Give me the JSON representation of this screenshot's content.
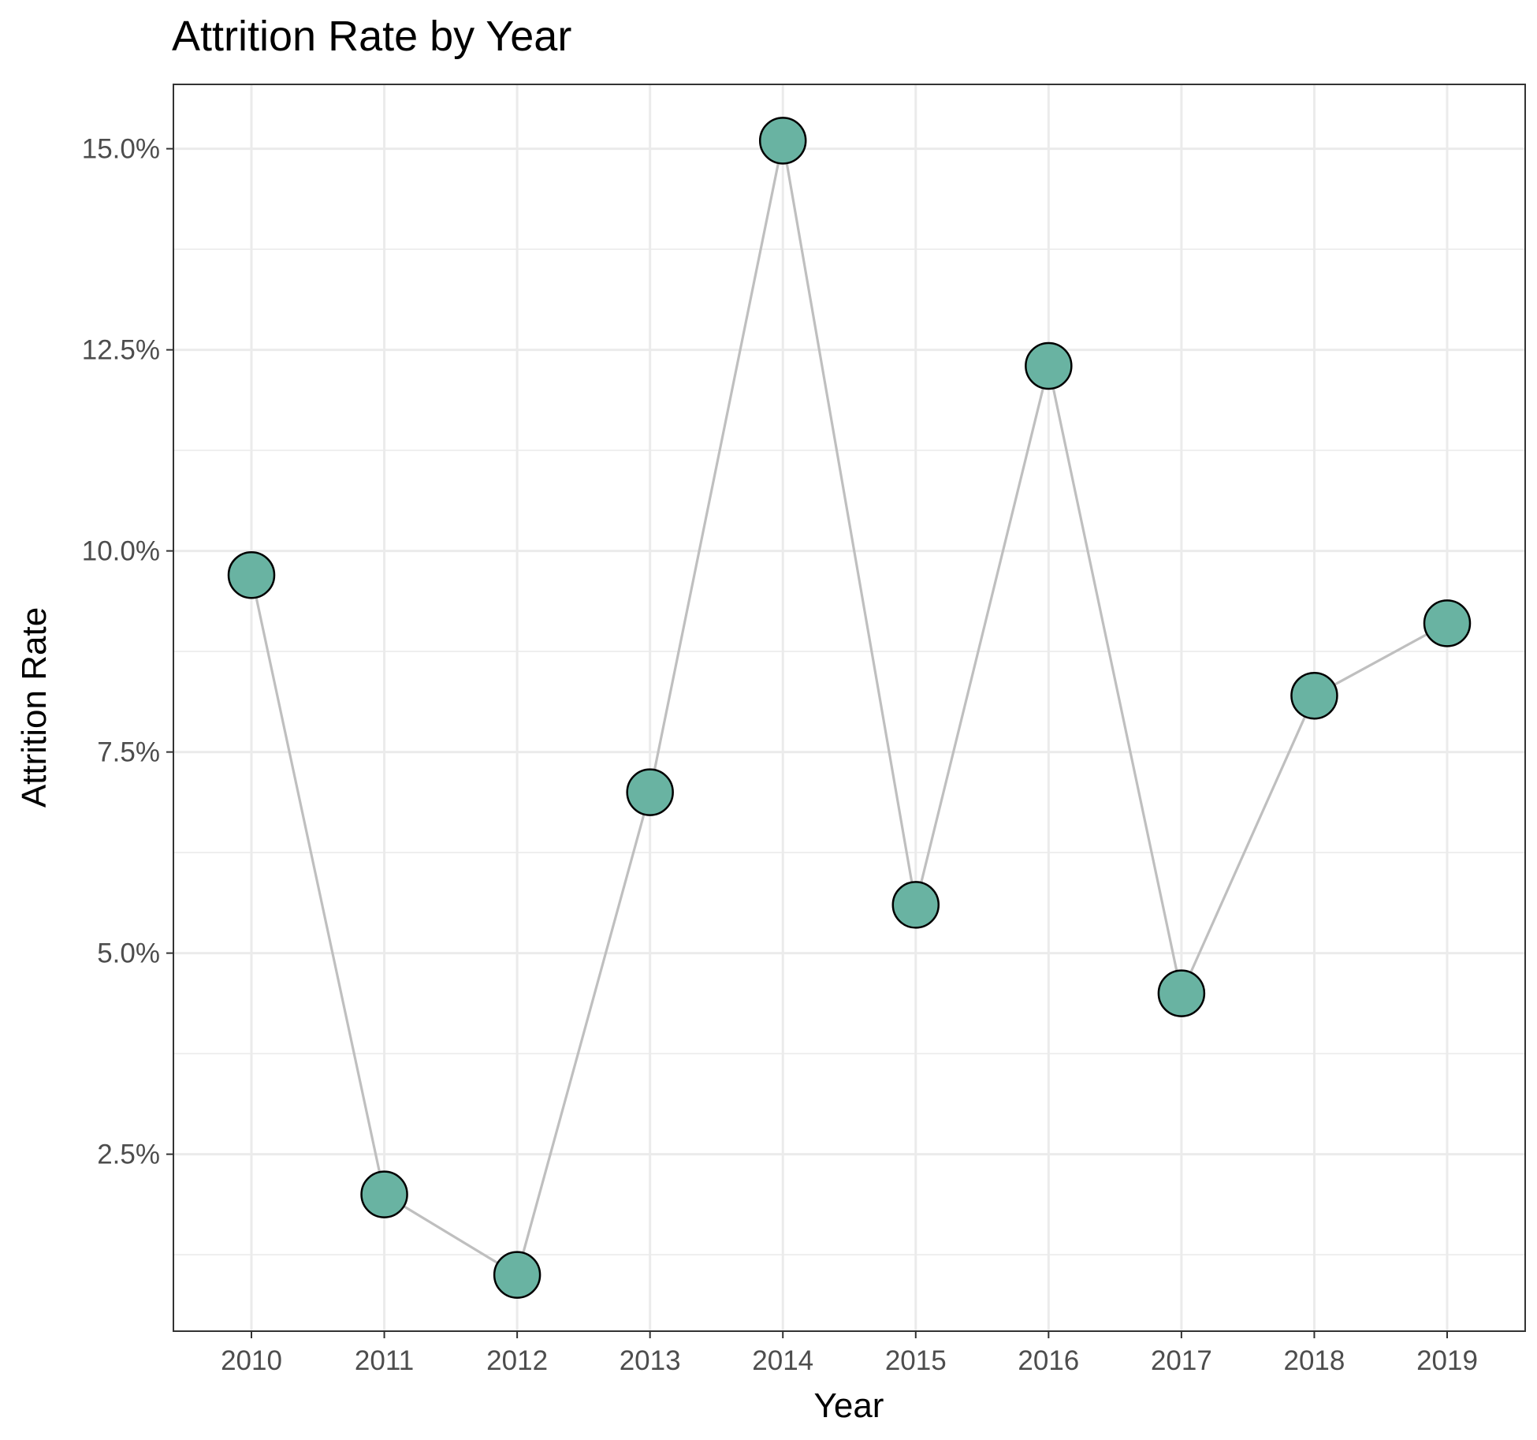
{
  "chart_data": {
    "type": "line",
    "title": "Attrition Rate by Year",
    "xlabel": "Year",
    "ylabel": "Attrition Rate",
    "categories": [
      "2010",
      "2011",
      "2012",
      "2013",
      "2014",
      "2015",
      "2016",
      "2017",
      "2018",
      "2019"
    ],
    "series": [
      {
        "values": [
          9.7,
          2.0,
          1.0,
          7.0,
          15.1,
          5.6,
          12.3,
          4.5,
          8.2,
          9.1
        ]
      }
    ],
    "y_ticks": [
      {
        "value": 2.5,
        "label": "2.5%"
      },
      {
        "value": 5.0,
        "label": "5.0%"
      },
      {
        "value": 7.5,
        "label": "7.5%"
      },
      {
        "value": 10.0,
        "label": "10.0%"
      },
      {
        "value": 12.5,
        "label": "12.5%"
      },
      {
        "value": 15.0,
        "label": "15.0%"
      }
    ],
    "ylim": [
      0.3,
      15.8
    ],
    "grid": true,
    "legend": "none",
    "colors": {
      "point_fill": "#69b3a2",
      "point_stroke": "#000000",
      "line": "#bfbfbf",
      "grid": "#ebebeb",
      "panel_border": "#333333"
    }
  }
}
